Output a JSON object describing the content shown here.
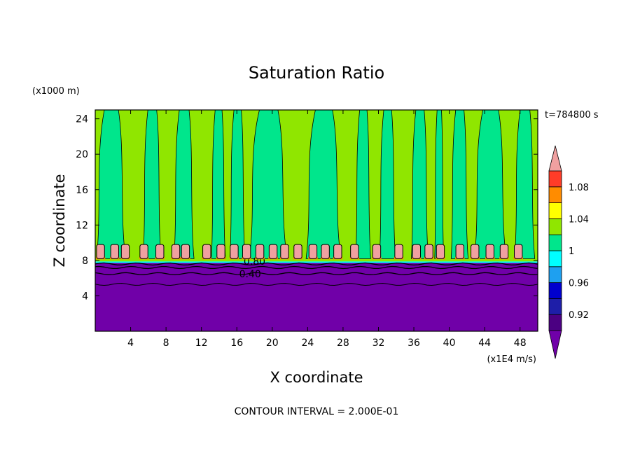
{
  "chart_data": {
    "type": "heatmap",
    "title": "Saturation Ratio",
    "xlabel": "X coordinate",
    "ylabel": "Z coordinate",
    "x_unit": "(x1E4 m/s)",
    "y_unit": "(x1000 m)",
    "time_label": "t=784800 s",
    "contour_interval": "CONTOUR INTERVAL = 2.000E-01",
    "xlim": [
      0,
      50
    ],
    "ylim": [
      0,
      25
    ],
    "x_ticks": [
      4,
      8,
      12,
      16,
      20,
      24,
      28,
      32,
      36,
      40,
      44,
      48
    ],
    "y_ticks": [
      4,
      8,
      12,
      16,
      20,
      24
    ],
    "contour_labels": [
      {
        "text": "0.80",
        "x": 18.0,
        "y": 7.9
      },
      {
        "text": "0.40",
        "x": 17.5,
        "y": 6.5
      }
    ],
    "colorbar": {
      "levels": [
        0.9,
        0.92,
        0.94,
        0.96,
        0.98,
        1.0,
        1.02,
        1.04,
        1.06,
        1.08,
        1.1
      ],
      "tick_labels": [
        {
          "value": 0.92,
          "label": "0.92"
        },
        {
          "value": 0.96,
          "label": "0.96"
        },
        {
          "value": 1.0,
          "label": "1"
        },
        {
          "value": 1.04,
          "label": "1.04"
        },
        {
          "value": 1.08,
          "label": "1.08"
        }
      ],
      "colors": [
        "#4b0082",
        "#1e1ea8",
        "#0000cd",
        "#1ea0f0",
        "#00ffff",
        "#00e68c",
        "#90e600",
        "#ffff00",
        "#ff8c00",
        "#ff3c28",
        "#f0a0a0"
      ],
      "under_color": "#7000a8",
      "over_color": "#f0a0a0"
    },
    "regions": {
      "lower_layer": {
        "z_top": 7.8,
        "value_range": "< 0.9",
        "color": "#7000a8"
      },
      "upper_layer_base_color": "#90e600",
      "vertical_columns": [
        {
          "x_start": 0.3,
          "x_end": 3.2,
          "value": "0.98-1.0"
        },
        {
          "x_start": 5.5,
          "x_end": 7.3,
          "value": "0.98-1.0"
        },
        {
          "x_start": 9.0,
          "x_end": 11.0,
          "value": "0.98-1.0"
        },
        {
          "x_start": 13.2,
          "x_end": 14.6,
          "value": "0.98-1.0"
        },
        {
          "x_start": 15.3,
          "x_end": 16.8,
          "value": "0.98-1.0"
        },
        {
          "x_start": 17.6,
          "x_end": 21.4,
          "value": "0.98-1.0"
        },
        {
          "x_start": 24.0,
          "x_end": 27.5,
          "value": "0.98-1.0"
        },
        {
          "x_start": 29.5,
          "x_end": 31.0,
          "value": "0.98-1.0"
        },
        {
          "x_start": 32.2,
          "x_end": 33.8,
          "value": "0.98-1.0"
        },
        {
          "x_start": 35.8,
          "x_end": 37.5,
          "value": "0.98-1.0"
        },
        {
          "x_start": 38.4,
          "x_end": 39.3,
          "value": "0.98-1.0"
        },
        {
          "x_start": 40.3,
          "x_end": 42.0,
          "value": "0.98-1.0"
        },
        {
          "x_start": 43.0,
          "x_end": 46.2,
          "value": "0.98-1.0"
        },
        {
          "x_start": 47.5,
          "x_end": 49.5,
          "value": "0.98-1.0"
        }
      ],
      "supersaturated_cells": {
        "z_range": [
          8.2,
          9.8
        ],
        "value_range": ">= 1.08",
        "x_centers": [
          0.6,
          2.2,
          3.4,
          5.5,
          7.3,
          9.1,
          10.2,
          12.6,
          14.2,
          15.7,
          17.1,
          18.6,
          20.1,
          21.4,
          22.9,
          24.6,
          26.0,
          27.4,
          29.3,
          31.8,
          34.3,
          36.3,
          37.7,
          39.0,
          41.2,
          42.9,
          44.6,
          46.2,
          47.8
        ]
      }
    }
  }
}
